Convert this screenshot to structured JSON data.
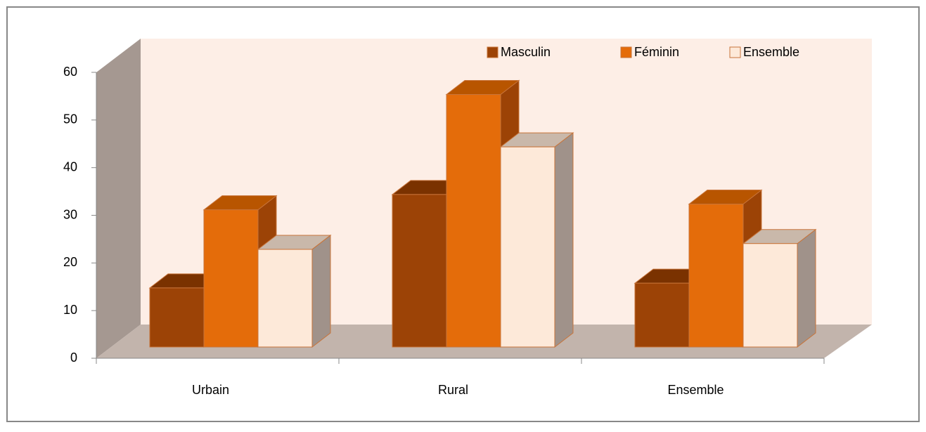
{
  "chart_data": {
    "type": "bar3d",
    "categories": [
      "Urbain",
      "Rural",
      "Ensemble"
    ],
    "series": [
      {
        "name": "Masculin",
        "color": "#9c4306",
        "values": [
          12.4,
          32,
          13.4
        ]
      },
      {
        "name": "Féminin",
        "color": "#e46c0a",
        "values": [
          28.8,
          53,
          30
        ]
      },
      {
        "name": "Ensemble",
        "color": "#fde9d9",
        "values": [
          20.5,
          42,
          21.7
        ]
      }
    ],
    "ylim": [
      0,
      60
    ],
    "yticks": [
      0,
      10,
      20,
      30,
      40,
      50,
      60
    ],
    "legend": "top-right"
  }
}
